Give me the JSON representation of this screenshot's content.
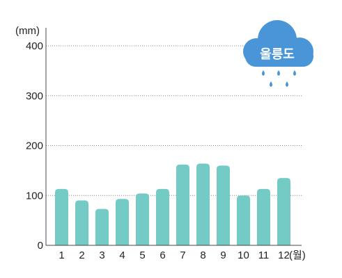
{
  "chart_data": {
    "type": "bar",
    "categories": [
      "1",
      "2",
      "3",
      "4",
      "5",
      "6",
      "7",
      "8",
      "9",
      "10",
      "11",
      "12"
    ],
    "values": [
      113,
      90,
      73,
      93,
      104,
      113,
      162,
      164,
      160,
      100,
      113,
      135
    ],
    "y_unit": "(mm)",
    "x_unit": "(월)",
    "ylim": [
      0,
      400
    ],
    "yticks": [
      "0",
      "100",
      "200",
      "300",
      "400"
    ],
    "grid": "dotted horizontal",
    "bar_color": "#74cbc5",
    "region_label": "울릉도",
    "badge_colors": {
      "cloud": "#4a95d8",
      "drops": "#4a95d8"
    }
  }
}
